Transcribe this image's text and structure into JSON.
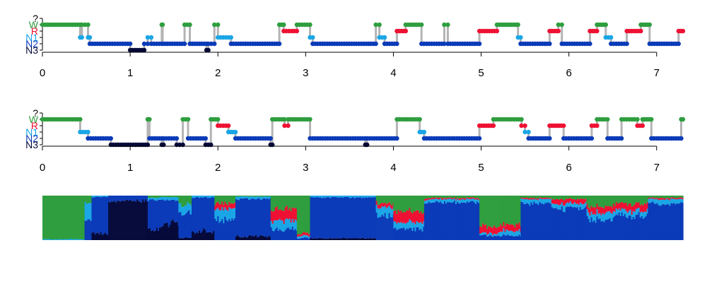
{
  "colors": {
    "W": "#2e9e3e",
    "R": "#ee1133",
    "N1": "#1aa6e6",
    "N2": "#0b3bb8",
    "N3": "#050a3a",
    "unknown": "#1e2a78",
    "stem": "#b4b4b4",
    "axis": "#000000"
  },
  "chart_data": [
    {
      "type": "scatter",
      "title": "",
      "xlabel": "",
      "ylabel": "",
      "xlim": [
        0,
        7.3
      ],
      "x_ticks": [
        "0",
        "1",
        "2",
        "3",
        "4",
        "5",
        "6",
        "7"
      ],
      "y_ticks": [
        "?",
        "W",
        "R",
        "N1",
        "N2",
        "N3"
      ],
      "stage_order": [
        "N3",
        "N2",
        "N1",
        "R",
        "W",
        "?"
      ],
      "segments": [
        {
          "stage": "W",
          "x0": 0.0,
          "x1": 0.43
        },
        {
          "stage": "N1",
          "x0": 0.43,
          "x1": 0.45
        },
        {
          "stage": "W",
          "x0": 0.45,
          "x1": 0.52
        },
        {
          "stage": "N1",
          "x0": 0.52,
          "x1": 0.54
        },
        {
          "stage": "N2",
          "x0": 0.54,
          "x1": 1.0
        },
        {
          "stage": "N3",
          "x0": 1.0,
          "x1": 1.16
        },
        {
          "stage": "N2",
          "x0": 1.16,
          "x1": 1.2
        },
        {
          "stage": "N1",
          "x0": 1.2,
          "x1": 1.24
        },
        {
          "stage": "N2",
          "x0": 1.24,
          "x1": 1.36
        },
        {
          "stage": "W",
          "x0": 1.36,
          "x1": 1.37
        },
        {
          "stage": "N2",
          "x0": 1.37,
          "x1": 1.62
        },
        {
          "stage": "W",
          "x0": 1.62,
          "x1": 1.68
        },
        {
          "stage": "N2",
          "x0": 1.68,
          "x1": 1.87
        },
        {
          "stage": "N3",
          "x0": 1.87,
          "x1": 1.89
        },
        {
          "stage": "N2",
          "x0": 1.89,
          "x1": 1.96
        },
        {
          "stage": "W",
          "x0": 1.96,
          "x1": 2.0
        },
        {
          "stage": "N1",
          "x0": 2.0,
          "x1": 2.15
        },
        {
          "stage": "N2",
          "x0": 2.15,
          "x1": 2.7
        },
        {
          "stage": "W",
          "x0": 2.7,
          "x1": 2.75
        },
        {
          "stage": "R",
          "x0": 2.75,
          "x1": 2.9
        },
        {
          "stage": "W",
          "x0": 2.9,
          "x1": 3.05
        },
        {
          "stage": "N1",
          "x0": 3.05,
          "x1": 3.08
        },
        {
          "stage": "N2",
          "x0": 3.08,
          "x1": 3.8
        },
        {
          "stage": "W",
          "x0": 3.8,
          "x1": 3.84
        },
        {
          "stage": "N1",
          "x0": 3.84,
          "x1": 3.9
        },
        {
          "stage": "N2",
          "x0": 3.9,
          "x1": 4.04
        },
        {
          "stage": "R",
          "x0": 4.04,
          "x1": 4.14
        },
        {
          "stage": "W",
          "x0": 4.14,
          "x1": 4.32
        },
        {
          "stage": "N2",
          "x0": 4.32,
          "x1": 4.58
        },
        {
          "stage": "W",
          "x0": 4.58,
          "x1": 4.62
        },
        {
          "stage": "N2",
          "x0": 4.62,
          "x1": 4.98
        },
        {
          "stage": "R",
          "x0": 4.98,
          "x1": 5.18
        },
        {
          "stage": "W",
          "x0": 5.18,
          "x1": 5.42
        },
        {
          "stage": "N1",
          "x0": 5.42,
          "x1": 5.45
        },
        {
          "stage": "N2",
          "x0": 5.45,
          "x1": 5.78
        },
        {
          "stage": "R",
          "x0": 5.78,
          "x1": 5.88
        },
        {
          "stage": "W",
          "x0": 5.88,
          "x1": 5.92
        },
        {
          "stage": "N2",
          "x0": 5.92,
          "x1": 6.24
        },
        {
          "stage": "R",
          "x0": 6.24,
          "x1": 6.32
        },
        {
          "stage": "W",
          "x0": 6.32,
          "x1": 6.42
        },
        {
          "stage": "N1",
          "x0": 6.42,
          "x1": 6.48
        },
        {
          "stage": "N2",
          "x0": 6.48,
          "x1": 6.66
        },
        {
          "stage": "R",
          "x0": 6.66,
          "x1": 6.82
        },
        {
          "stage": "W",
          "x0": 6.82,
          "x1": 6.92
        },
        {
          "stage": "N2",
          "x0": 6.92,
          "x1": 7.25
        },
        {
          "stage": "R",
          "x0": 7.25,
          "x1": 7.3
        }
      ]
    },
    {
      "type": "scatter",
      "title": "",
      "xlabel": "",
      "ylabel": "",
      "xlim": [
        0,
        7.3
      ],
      "x_ticks": [
        "0",
        "1",
        "2",
        "3",
        "4",
        "5",
        "6",
        "7"
      ],
      "y_ticks": [
        "?",
        "W",
        "R",
        "N1",
        "N2",
        "N3"
      ],
      "stage_order": [
        "N3",
        "N2",
        "N1",
        "R",
        "W",
        "?"
      ],
      "segments": [
        {
          "stage": "W",
          "x0": 0.0,
          "x1": 0.43
        },
        {
          "stage": "N1",
          "x0": 0.43,
          "x1": 0.52
        },
        {
          "stage": "N2",
          "x0": 0.52,
          "x1": 0.78
        },
        {
          "stage": "N3",
          "x0": 0.78,
          "x1": 1.2
        },
        {
          "stage": "W",
          "x0": 1.2,
          "x1": 1.22
        },
        {
          "stage": "N2",
          "x0": 1.22,
          "x1": 1.36
        },
        {
          "stage": "N3",
          "x0": 1.36,
          "x1": 1.38
        },
        {
          "stage": "N2",
          "x0": 1.38,
          "x1": 1.53
        },
        {
          "stage": "N3",
          "x0": 1.53,
          "x1": 1.6
        },
        {
          "stage": "W",
          "x0": 1.6,
          "x1": 1.66
        },
        {
          "stage": "N2",
          "x0": 1.66,
          "x1": 1.86
        },
        {
          "stage": "N3",
          "x0": 1.86,
          "x1": 1.92
        },
        {
          "stage": "W",
          "x0": 1.92,
          "x1": 2.0
        },
        {
          "stage": "R",
          "x0": 2.0,
          "x1": 2.12
        },
        {
          "stage": "N1",
          "x0": 2.12,
          "x1": 2.2
        },
        {
          "stage": "N2",
          "x0": 2.2,
          "x1": 2.6
        },
        {
          "stage": "N3",
          "x0": 2.6,
          "x1": 2.62
        },
        {
          "stage": "W",
          "x0": 2.62,
          "x1": 2.76
        },
        {
          "stage": "R",
          "x0": 2.76,
          "x1": 2.8
        },
        {
          "stage": "W",
          "x0": 2.8,
          "x1": 3.05
        },
        {
          "stage": "N2",
          "x0": 3.05,
          "x1": 3.68
        },
        {
          "stage": "N3",
          "x0": 3.68,
          "x1": 3.7
        },
        {
          "stage": "N2",
          "x0": 3.7,
          "x1": 4.04
        },
        {
          "stage": "W",
          "x0": 4.04,
          "x1": 4.3
        },
        {
          "stage": "N1",
          "x0": 4.3,
          "x1": 4.35
        },
        {
          "stage": "N2",
          "x0": 4.35,
          "x1": 4.98
        },
        {
          "stage": "R",
          "x0": 4.98,
          "x1": 5.14
        },
        {
          "stage": "W",
          "x0": 5.14,
          "x1": 5.46
        },
        {
          "stage": "R",
          "x0": 5.46,
          "x1": 5.5
        },
        {
          "stage": "N1",
          "x0": 5.5,
          "x1": 5.54
        },
        {
          "stage": "N2",
          "x0": 5.54,
          "x1": 5.78
        },
        {
          "stage": "R",
          "x0": 5.78,
          "x1": 5.94
        },
        {
          "stage": "N2",
          "x0": 5.94,
          "x1": 6.26
        },
        {
          "stage": "R",
          "x0": 6.26,
          "x1": 6.32
        },
        {
          "stage": "W",
          "x0": 6.32,
          "x1": 6.44
        },
        {
          "stage": "N2",
          "x0": 6.44,
          "x1": 6.6
        },
        {
          "stage": "W",
          "x0": 6.6,
          "x1": 6.78
        },
        {
          "stage": "R",
          "x0": 6.78,
          "x1": 6.84
        },
        {
          "stage": "W",
          "x0": 6.84,
          "x1": 6.94
        },
        {
          "stage": "N2",
          "x0": 6.94,
          "x1": 7.28
        },
        {
          "stage": "W",
          "x0": 7.28,
          "x1": 7.3
        }
      ]
    },
    {
      "type": "area",
      "title": "",
      "xlabel": "",
      "ylabel": "",
      "xlim": [
        0,
        7.3
      ],
      "ylim": [
        0,
        1
      ],
      "stacked": true,
      "stack_order": [
        "N3",
        "N2",
        "N1",
        "R",
        "W"
      ],
      "segments": [
        {
          "x0": 0.0,
          "x1": 0.48,
          "N3": 0.0,
          "N2": 0.0,
          "N1": 0.02,
          "R": 0.0,
          "W": 0.98
        },
        {
          "x0": 0.48,
          "x1": 0.56,
          "N3": 0.0,
          "N2": 0.45,
          "N1": 0.4,
          "R": 0.0,
          "W": 0.15
        },
        {
          "x0": 0.56,
          "x1": 0.75,
          "N3": 0.15,
          "N2": 0.82,
          "N1": 0.03,
          "R": 0.0,
          "W": 0.0
        },
        {
          "x0": 0.75,
          "x1": 1.2,
          "N3": 0.88,
          "N2": 0.12,
          "N1": 0.0,
          "R": 0.0,
          "W": 0.0
        },
        {
          "x0": 1.2,
          "x1": 1.35,
          "N3": 0.25,
          "N2": 0.65,
          "N1": 0.05,
          "R": 0.0,
          "W": 0.05
        },
        {
          "x0": 1.35,
          "x1": 1.55,
          "N3": 0.35,
          "N2": 0.55,
          "N1": 0.07,
          "R": 0.0,
          "W": 0.03
        },
        {
          "x0": 1.55,
          "x1": 1.7,
          "N3": 0.05,
          "N2": 0.55,
          "N1": 0.2,
          "R": 0.0,
          "W": 0.2
        },
        {
          "x0": 1.7,
          "x1": 1.96,
          "N3": 0.18,
          "N2": 0.78,
          "N1": 0.04,
          "R": 0.0,
          "W": 0.0
        },
        {
          "x0": 1.96,
          "x1": 2.2,
          "N3": 0.0,
          "N2": 0.45,
          "N1": 0.25,
          "R": 0.12,
          "W": 0.18
        },
        {
          "x0": 2.2,
          "x1": 2.6,
          "N3": 0.08,
          "N2": 0.85,
          "N1": 0.05,
          "R": 0.0,
          "W": 0.02
        },
        {
          "x0": 2.6,
          "x1": 2.9,
          "N3": 0.0,
          "N2": 0.25,
          "N1": 0.2,
          "R": 0.25,
          "W": 0.3
        },
        {
          "x0": 2.9,
          "x1": 3.05,
          "N3": 0.0,
          "N2": 0.05,
          "N1": 0.05,
          "R": 0.05,
          "W": 0.85
        },
        {
          "x0": 3.05,
          "x1": 3.8,
          "N3": 0.04,
          "N2": 0.92,
          "N1": 0.04,
          "R": 0.0,
          "W": 0.0
        },
        {
          "x0": 3.8,
          "x1": 4.0,
          "N3": 0.0,
          "N2": 0.55,
          "N1": 0.2,
          "R": 0.08,
          "W": 0.17
        },
        {
          "x0": 4.0,
          "x1": 4.35,
          "N3": 0.0,
          "N2": 0.25,
          "N1": 0.15,
          "R": 0.25,
          "W": 0.35
        },
        {
          "x0": 4.35,
          "x1": 4.98,
          "N3": 0.0,
          "N2": 0.85,
          "N1": 0.07,
          "R": 0.03,
          "W": 0.05
        },
        {
          "x0": 4.98,
          "x1": 5.2,
          "N3": 0.0,
          "N2": 0.1,
          "N1": 0.05,
          "R": 0.15,
          "W": 0.7
        },
        {
          "x0": 5.2,
          "x1": 5.45,
          "N3": 0.0,
          "N2": 0.1,
          "N1": 0.1,
          "R": 0.15,
          "W": 0.65
        },
        {
          "x0": 5.45,
          "x1": 5.8,
          "N3": 0.0,
          "N2": 0.82,
          "N1": 0.1,
          "R": 0.03,
          "W": 0.05
        },
        {
          "x0": 5.8,
          "x1": 6.2,
          "N3": 0.0,
          "N2": 0.72,
          "N1": 0.1,
          "R": 0.1,
          "W": 0.08
        },
        {
          "x0": 6.2,
          "x1": 6.5,
          "N3": 0.0,
          "N2": 0.45,
          "N1": 0.15,
          "R": 0.15,
          "W": 0.25
        },
        {
          "x0": 6.5,
          "x1": 6.9,
          "N3": 0.0,
          "N2": 0.55,
          "N1": 0.12,
          "R": 0.15,
          "W": 0.18
        },
        {
          "x0": 6.9,
          "x1": 7.3,
          "N3": 0.0,
          "N2": 0.82,
          "N1": 0.1,
          "R": 0.03,
          "W": 0.05
        }
      ]
    }
  ]
}
